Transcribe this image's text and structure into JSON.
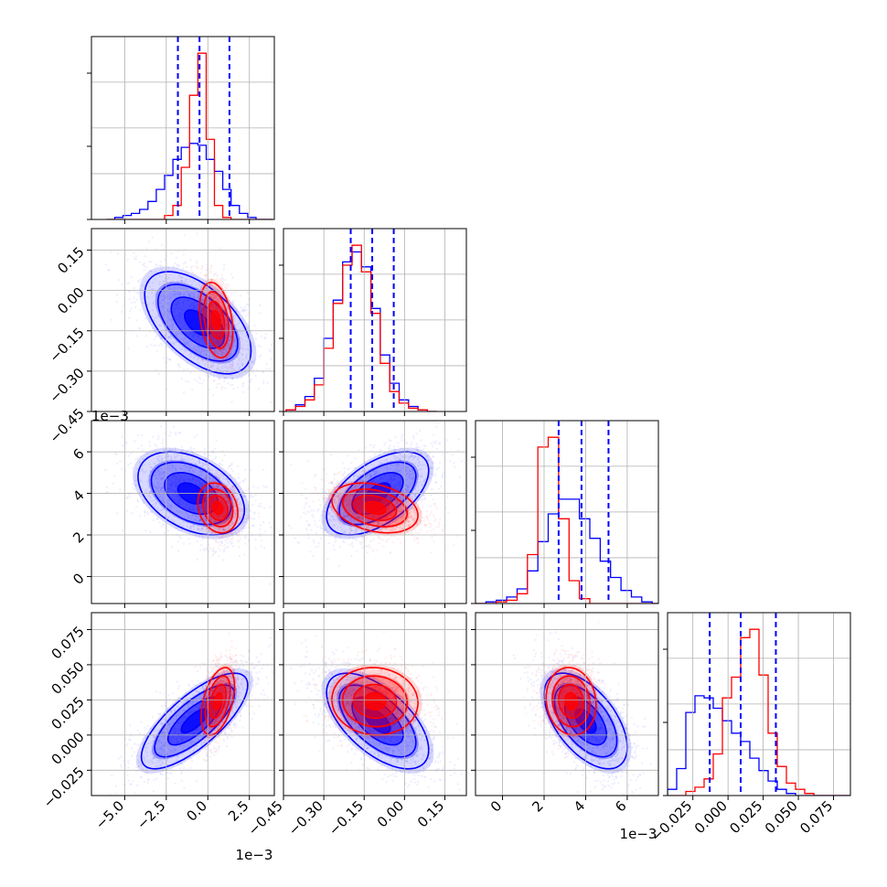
{
  "chart_data": {
    "type": "corner",
    "parameters": [
      {
        "range": [
          -0.007,
          0.004
        ],
        "ticks": [
          -0.005,
          -0.0025,
          0.0,
          0.0025
        ],
        "tick_labels": [
          "−5.0",
          "−2.5",
          "0.0",
          "2.5"
        ],
        "offset": "1e−3"
      },
      {
        "range": [
          -0.45,
          0.23
        ],
        "ticks": [
          -0.45,
          -0.3,
          -0.15,
          0.0,
          0.15
        ],
        "tick_labels": [
          "−0.45",
          "−0.30",
          "−0.15",
          "0.00",
          "0.15"
        ],
        "offset": ""
      },
      {
        "range": [
          -0.0013,
          0.0075
        ],
        "ticks": [
          0.0,
          0.002,
          0.004,
          0.006
        ],
        "tick_labels": [
          "0",
          "2",
          "4",
          "6"
        ],
        "offset": "1e−3"
      },
      {
        "range": [
          -0.043,
          0.087
        ],
        "ticks": [
          -0.025,
          0.0,
          0.025,
          0.05,
          0.075
        ],
        "tick_labels": [
          "−0.025",
          "0.000",
          "0.025",
          "0.050",
          "0.075"
        ],
        "offset": ""
      }
    ],
    "series": [
      {
        "color": "#0000ff",
        "style": "step histogram + filled contours + scatter"
      },
      {
        "color": "#ff0000",
        "style": "step histogram + contours + scatter"
      }
    ],
    "quantile_color": "#0000ff",
    "quantiles": [
      [
        -0.0018,
        -0.0005,
        0.0013
      ],
      [
        -0.2,
        -0.12,
        -0.04
      ],
      [
        0.0027,
        0.0038,
        0.0051
      ],
      [
        -0.013,
        0.009,
        0.034
      ]
    ],
    "histograms": [
      {
        "edges_start": -0.0061,
        "edges_step": 0.0005,
        "blue": [
          0,
          1,
          2,
          3,
          5,
          9,
          15,
          22,
          30,
          36,
          38,
          37,
          30,
          24,
          15,
          7,
          3,
          1,
          0,
          0
        ],
        "red": [
          0,
          0,
          0,
          0,
          0,
          0,
          0,
          2,
          7,
          26,
          62,
          83,
          40,
          7,
          1,
          0,
          0,
          0,
          0,
          0
        ]
      },
      {
        "edges_start": -0.44,
        "edges_step": 0.035,
        "blue": [
          1,
          4,
          9,
          20,
          44,
          67,
          90,
          96,
          87,
          62,
          34,
          17,
          7,
          3,
          1,
          0
        ],
        "red": [
          1,
          3,
          7,
          16,
          38,
          65,
          88,
          100,
          84,
          59,
          29,
          12,
          5,
          2,
          1,
          0
        ]
      },
      {
        "edges_start": -0.0013,
        "edges_step": 0.0005,
        "blue": [
          0,
          1,
          2,
          4,
          9,
          20,
          38,
          55,
          64,
          64,
          52,
          40,
          26,
          16,
          8,
          4,
          1,
          0
        ],
        "red": [
          0,
          0,
          1,
          2,
          6,
          30,
          96,
          102,
          52,
          14,
          3,
          0,
          0,
          0,
          0,
          0,
          0,
          0
        ]
      },
      {
        "edges_start": -0.043,
        "edges_step": 0.0065,
        "blue": [
          3,
          13,
          40,
          48,
          47,
          42,
          36,
          30,
          26,
          18,
          12,
          7,
          3,
          1,
          0,
          0,
          0,
          0,
          0,
          0
        ],
        "red": [
          0,
          0,
          2,
          4,
          8,
          20,
          47,
          57,
          76,
          80,
          58,
          30,
          14,
          6,
          3,
          1,
          0,
          0,
          0,
          0
        ]
      }
    ],
    "pairs": [
      {
        "row": 1,
        "col": 0,
        "blue": {
          "mean": [
            -0.0006,
            -0.12
          ],
          "sd": [
            0.0016,
            0.095
          ],
          "rho": -0.55
        },
        "red": {
          "mean": [
            0.0005,
            -0.11
          ],
          "sd": [
            0.0005,
            0.07
          ],
          "rho": -0.3
        }
      },
      {
        "row": 2,
        "col": 0,
        "blue": {
          "mean": [
            -0.001,
            0.004
          ],
          "sd": [
            0.0016,
            0.001
          ],
          "rho": -0.4
        },
        "red": {
          "mean": [
            0.0006,
            0.0033
          ],
          "sd": [
            0.0006,
            0.0006
          ],
          "rho": -0.2
        }
      },
      {
        "row": 2,
        "col": 1,
        "blue": {
          "mean": [
            -0.1,
            0.004
          ],
          "sd": [
            0.095,
            0.001
          ],
          "rho": 0.55
        },
        "red": {
          "mean": [
            -0.11,
            0.0033
          ],
          "sd": [
            0.08,
            0.0006
          ],
          "rho": -0.3
        }
      },
      {
        "row": 3,
        "col": 0,
        "blue": {
          "mean": [
            -0.0008,
            0.01
          ],
          "sd": [
            0.0016,
            0.017
          ],
          "rho": 0.75
        },
        "red": {
          "mean": [
            0.0006,
            0.024
          ],
          "sd": [
            0.0005,
            0.012
          ],
          "rho": 0.45
        }
      },
      {
        "row": 3,
        "col": 1,
        "blue": {
          "mean": [
            -0.1,
            0.01
          ],
          "sd": [
            0.095,
            0.017
          ],
          "rho": -0.6
        },
        "red": {
          "mean": [
            -0.11,
            0.024
          ],
          "sd": [
            0.08,
            0.012
          ],
          "rho": -0.05
        }
      },
      {
        "row": 3,
        "col": 2,
        "blue": {
          "mean": [
            0.004,
            0.01
          ],
          "sd": [
            0.001,
            0.017
          ],
          "rho": -0.55
        },
        "red": {
          "mean": [
            0.0033,
            0.024
          ],
          "sd": [
            0.0006,
            0.012
          ],
          "rho": -0.1
        }
      }
    ]
  }
}
